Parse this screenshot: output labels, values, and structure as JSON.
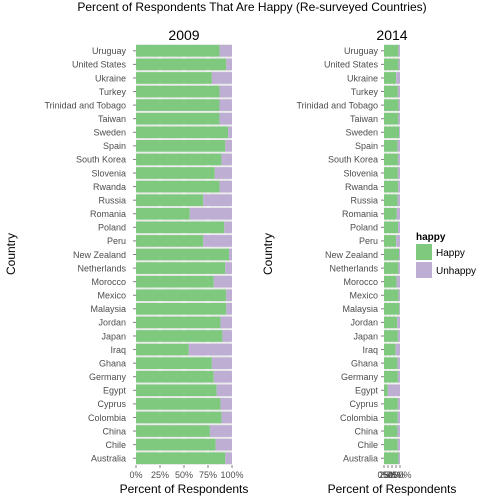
{
  "title": "Percent of Respondents That Are Happy (Re-surveyed Countries)",
  "legend": {
    "title": "happy",
    "entries": [
      {
        "label": "Happy",
        "color": "#7fc97f"
      },
      {
        "label": "Unhappy",
        "color": "#beaed4"
      }
    ],
    "position": "right"
  },
  "chart_data": [
    {
      "type": "bar",
      "orientation": "horizontal",
      "stacked": true,
      "panel_title": "2009",
      "xlabel": "Percent of Respondents",
      "ylabel": "Country",
      "xlim": [
        0,
        1
      ],
      "x_ticks": [
        "0%",
        "25%",
        "50%",
        "75%",
        "100%"
      ],
      "grid": true,
      "categories": [
        "Uruguay",
        "United States",
        "Ukraine",
        "Turkey",
        "Trinidad and Tobago",
        "Taiwan",
        "Sweden",
        "Spain",
        "South Korea",
        "Slovenia",
        "Rwanda",
        "Russia",
        "Romania",
        "Poland",
        "Peru",
        "New Zealand",
        "Netherlands",
        "Morocco",
        "Mexico",
        "Malaysia",
        "Jordan",
        "Japan",
        "Iraq",
        "Ghana",
        "Germany",
        "Egypt",
        "Cyprus",
        "Colombia",
        "China",
        "Chile",
        "Australia"
      ],
      "series": [
        {
          "name": "Happy",
          "color": "#7fc97f",
          "values": [
            0.87,
            0.94,
            0.79,
            0.87,
            0.87,
            0.87,
            0.96,
            0.93,
            0.89,
            0.82,
            0.87,
            0.7,
            0.56,
            0.92,
            0.7,
            0.97,
            0.93,
            0.81,
            0.94,
            0.94,
            0.88,
            0.9,
            0.55,
            0.79,
            0.81,
            0.84,
            0.88,
            0.89,
            0.77,
            0.83,
            0.93
          ]
        },
        {
          "name": "Unhappy",
          "color": "#beaed4",
          "values": [
            0.13,
            0.06,
            0.21,
            0.13,
            0.13,
            0.13,
            0.04,
            0.07,
            0.11,
            0.18,
            0.13,
            0.3,
            0.44,
            0.08,
            0.3,
            0.03,
            0.07,
            0.19,
            0.06,
            0.06,
            0.12,
            0.1,
            0.45,
            0.21,
            0.19,
            0.16,
            0.12,
            0.11,
            0.23,
            0.17,
            0.07
          ]
        }
      ]
    },
    {
      "type": "bar",
      "orientation": "horizontal",
      "stacked": true,
      "panel_title": "2014",
      "xlabel": "Percent of Respondents",
      "ylabel": "Country",
      "xlim": [
        0,
        1
      ],
      "x_ticks": [
        "0%",
        "25%",
        "50%",
        "75%",
        "100%"
      ],
      "grid": true,
      "categories": [
        "Uruguay",
        "United States",
        "Ukraine",
        "Turkey",
        "Trinidad and Tobago",
        "Taiwan",
        "Sweden",
        "Spain",
        "South Korea",
        "Slovenia",
        "Rwanda",
        "Russia",
        "Romania",
        "Poland",
        "Peru",
        "New Zealand",
        "Netherlands",
        "Morocco",
        "Mexico",
        "Malaysia",
        "Jordan",
        "Japan",
        "Iraq",
        "Ghana",
        "Germany",
        "Egypt",
        "Cyprus",
        "Colombia",
        "China",
        "Chile",
        "Australia"
      ],
      "series": [
        {
          "name": "Happy",
          "color": "#7fc97f",
          "values": [
            0.9,
            0.91,
            0.76,
            0.87,
            0.91,
            0.9,
            0.95,
            0.85,
            0.88,
            0.87,
            0.89,
            0.85,
            0.8,
            0.88,
            0.76,
            0.94,
            0.9,
            0.78,
            0.91,
            0.96,
            0.83,
            0.87,
            0.73,
            0.84,
            0.87,
            0.24,
            0.87,
            0.86,
            0.84,
            0.86,
            0.91
          ]
        },
        {
          "name": "Unhappy",
          "color": "#beaed4",
          "values": [
            0.1,
            0.09,
            0.24,
            0.13,
            0.09,
            0.1,
            0.05,
            0.15,
            0.12,
            0.13,
            0.11,
            0.15,
            0.2,
            0.12,
            0.24,
            0.06,
            0.1,
            0.22,
            0.09,
            0.04,
            0.17,
            0.13,
            0.27,
            0.16,
            0.13,
            0.76,
            0.13,
            0.14,
            0.16,
            0.14,
            0.09
          ]
        }
      ]
    }
  ]
}
